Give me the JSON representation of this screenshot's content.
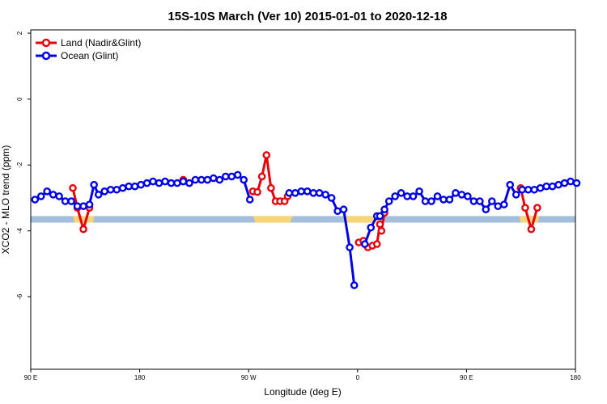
{
  "chart_data": {
    "type": "line",
    "title": "15S-10S March (Ver 10)   2015-01-01 to 2020-12-18",
    "xlabel": "Longitude (deg E)",
    "ylabel": "XCO2 - MLO trend (ppm)",
    "xlim": [
      90,
      450
    ],
    "ylim": [
      -8.2,
      2.1
    ],
    "x_ticks": [
      90,
      162,
      234,
      306,
      378,
      450
    ],
    "x_tick_labels": [
      "90 E",
      "180",
      "90 W",
      "0",
      "90 E",
      "180"
    ],
    "y_ticks": [
      2,
      0,
      -2,
      -4,
      -6
    ],
    "y_tick_labels": [
      "2",
      "0",
      "-2",
      "-4",
      "-6"
    ],
    "legend_position": "top-left",
    "land_band": {
      "y_range": [
        -3.75,
        -3.55
      ],
      "color_ocean": "#a4bedb",
      "color_land": "#f7d67a",
      "land_segments": [
        [
          118,
          132
        ],
        [
          237,
          263
        ],
        [
          297,
          322
        ],
        [
          413,
          426
        ]
      ]
    },
    "series": [
      {
        "name": "Land (Nadir&Glint)",
        "color": "#e8000b",
        "x": [
          117.8,
          120.8,
          124.8,
          128.8,
          190.8,
          236.8,
          239.8,
          242.8,
          245.8,
          248.8,
          251.8,
          254.8,
          257.8,
          259.8,
          306.8,
          309.8,
          312.8,
          315.8,
          318.8,
          320.8,
          321.8,
          323.8,
          413.8,
          416.8,
          420.8,
          424.8
        ],
        "y": [
          -2.7,
          -3.3,
          -3.95,
          -3.3,
          -2.45,
          -2.8,
          -2.82,
          -2.35,
          -1.7,
          -2.7,
          -3.1,
          -3.1,
          -3.1,
          -2.95,
          -4.35,
          -4.3,
          -4.5,
          -4.45,
          -4.4,
          -3.8,
          -4.0,
          -3.45,
          -2.7,
          -3.3,
          -3.95,
          -3.3
        ]
      },
      {
        "name": "Ocean (Glint)",
        "color": "#0000e8",
        "x": [
          92.8,
          96.8,
          100.8,
          104.8,
          108.8,
          112.8,
          116.8,
          120.8,
          124.8,
          128.8,
          131.8,
          134.8,
          138.8,
          142.8,
          146.8,
          150.8,
          154.8,
          158.8,
          162.8,
          166.8,
          170.8,
          174.8,
          178.8,
          182.8,
          186.8,
          190.8,
          194.8,
          198.8,
          202.8,
          206.8,
          210.8,
          214.8,
          218.8,
          222.8,
          226.8,
          230.8,
          234.8,
          260.8,
          264.8,
          268.8,
          272.8,
          276.8,
          280.8,
          284.8,
          288.8,
          292.8,
          296.8,
          300.8,
          303.8,
          310.8,
          314.8,
          318.8,
          320.8,
          323.8,
          326.8,
          330.8,
          334.8,
          338.8,
          342.8,
          346.8,
          350.8,
          354.8,
          358.8,
          362.8,
          366.8,
          370.8,
          374.8,
          378.8,
          382.8,
          386.8,
          390.8,
          394.8,
          398.8,
          402.8,
          406.8,
          410.8,
          414.8,
          418.8,
          422.8,
          426.8,
          430.8,
          434.8,
          438.8,
          442.8,
          446.8,
          450.8
        ],
        "y": [
          -3.05,
          -2.95,
          -2.8,
          -2.9,
          -2.95,
          -3.1,
          -3.1,
          -3.25,
          -3.25,
          -3.2,
          -2.6,
          -2.9,
          -2.8,
          -2.75,
          -2.75,
          -2.7,
          -2.65,
          -2.65,
          -2.6,
          -2.55,
          -2.5,
          -2.55,
          -2.5,
          -2.55,
          -2.55,
          -2.5,
          -2.55,
          -2.45,
          -2.45,
          -2.45,
          -2.4,
          -2.45,
          -2.35,
          -2.35,
          -2.3,
          -2.45,
          -3.05,
          -2.85,
          -2.85,
          -2.8,
          -2.8,
          -2.85,
          -2.85,
          -2.9,
          -3.0,
          -3.4,
          -3.35,
          -4.5,
          -5.65,
          -4.4,
          -3.9,
          -3.55,
          -3.55,
          -3.35,
          -3.1,
          -2.95,
          -2.85,
          -2.95,
          -2.95,
          -2.8,
          -3.1,
          -3.1,
          -2.95,
          -3.05,
          -3.05,
          -2.85,
          -2.9,
          -2.95,
          -3.1,
          -3.1,
          -3.35,
          -3.1,
          -3.25,
          -3.2,
          -2.6,
          -2.9,
          -2.75,
          -2.75,
          -2.75,
          -2.7,
          -2.65,
          -2.65,
          -2.6,
          -2.55,
          -2.5,
          -2.55
        ]
      }
    ]
  }
}
